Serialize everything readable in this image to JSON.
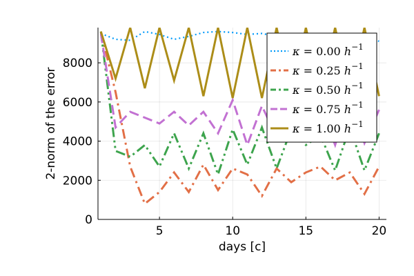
{
  "chart_data": {
    "type": "line",
    "xlabel": "days [c]",
    "ylabel": "2-norm of the error",
    "xlim": [
      0.8,
      20.5
    ],
    "ylim": [
      0,
      9800
    ],
    "xticks": [
      5,
      10,
      15,
      20
    ],
    "yticks": [
      0,
      2000,
      4000,
      6000,
      8000
    ],
    "xtick_labels": [
      "5",
      "10",
      "15",
      "20"
    ],
    "ytick_labels": [
      "0",
      "2000",
      "4000",
      "6000",
      "8000"
    ],
    "grid": true,
    "legend_position": "top-right",
    "x": [
      1,
      2,
      3,
      4,
      5,
      6,
      7,
      8,
      9,
      10,
      11,
      12,
      13,
      14,
      15,
      16,
      17,
      18,
      19,
      20
    ],
    "series": [
      {
        "name": "κ = 0.00 h⁻¹",
        "legend_parts": {
          "kappa": "κ",
          "eq": "=",
          "value": "0.00",
          "unit": "h",
          "exp": "−1"
        },
        "color": "#009AFA",
        "dash": "dotted",
        "values": [
          9500,
          9200,
          9150,
          9600,
          9450,
          9200,
          9350,
          9550,
          9600,
          9550,
          9450,
          9500,
          9350,
          9400,
          9500,
          9300,
          9450,
          9500,
          9450,
          9100
        ]
      },
      {
        "name": "κ = 0.25 h⁻¹",
        "legend_parts": {
          "kappa": "κ",
          "eq": "=",
          "value": "0.25",
          "unit": "h",
          "exp": "−1"
        },
        "color": "#E26F46",
        "dash": "dashdot",
        "values": [
          9600,
          6500,
          2700,
          800,
          1400,
          2400,
          1400,
          2800,
          1500,
          2600,
          2300,
          1200,
          2600,
          1900,
          2400,
          2700,
          2000,
          2400,
          1300,
          2700
        ]
      },
      {
        "name": "κ = 0.50 h⁻¹",
        "legend_parts": {
          "kappa": "κ",
          "eq": "=",
          "value": "0.50",
          "unit": "h",
          "exp": "−1"
        },
        "color": "#3DA44D",
        "dash": "dashdotdot",
        "values": [
          9600,
          3500,
          3200,
          3800,
          2700,
          4400,
          2600,
          4400,
          2300,
          4600,
          2800,
          4700,
          2600,
          4600,
          3800,
          4300,
          2500,
          4700,
          2500,
          4400
        ]
      },
      {
        "name": "κ = 0.75 h⁻¹",
        "legend_parts": {
          "kappa": "κ",
          "eq": "=",
          "value": "0.75",
          "unit": "h",
          "exp": "−1"
        },
        "color": "#C271D2",
        "dash": "dashed",
        "values": [
          9500,
          4700,
          5500,
          5200,
          4900,
          5500,
          4800,
          5500,
          4400,
          6100,
          3800,
          5800,
          4200,
          6200,
          4500,
          5800,
          3800,
          6200,
          3900,
          5600
        ]
      },
      {
        "name": "κ = 1.00 h⁻¹",
        "legend_parts": {
          "kappa": "κ",
          "eq": "=",
          "value": "1.00",
          "unit": "h",
          "exp": "−1"
        },
        "color": "#AC8D18",
        "dash": "solid",
        "values": [
          9600,
          7200,
          9800,
          6700,
          9800,
          7100,
          9800,
          6300,
          9800,
          6200,
          9800,
          6200,
          9800,
          6300,
          9800,
          6500,
          9800,
          6400,
          9800,
          6300
        ]
      }
    ]
  }
}
